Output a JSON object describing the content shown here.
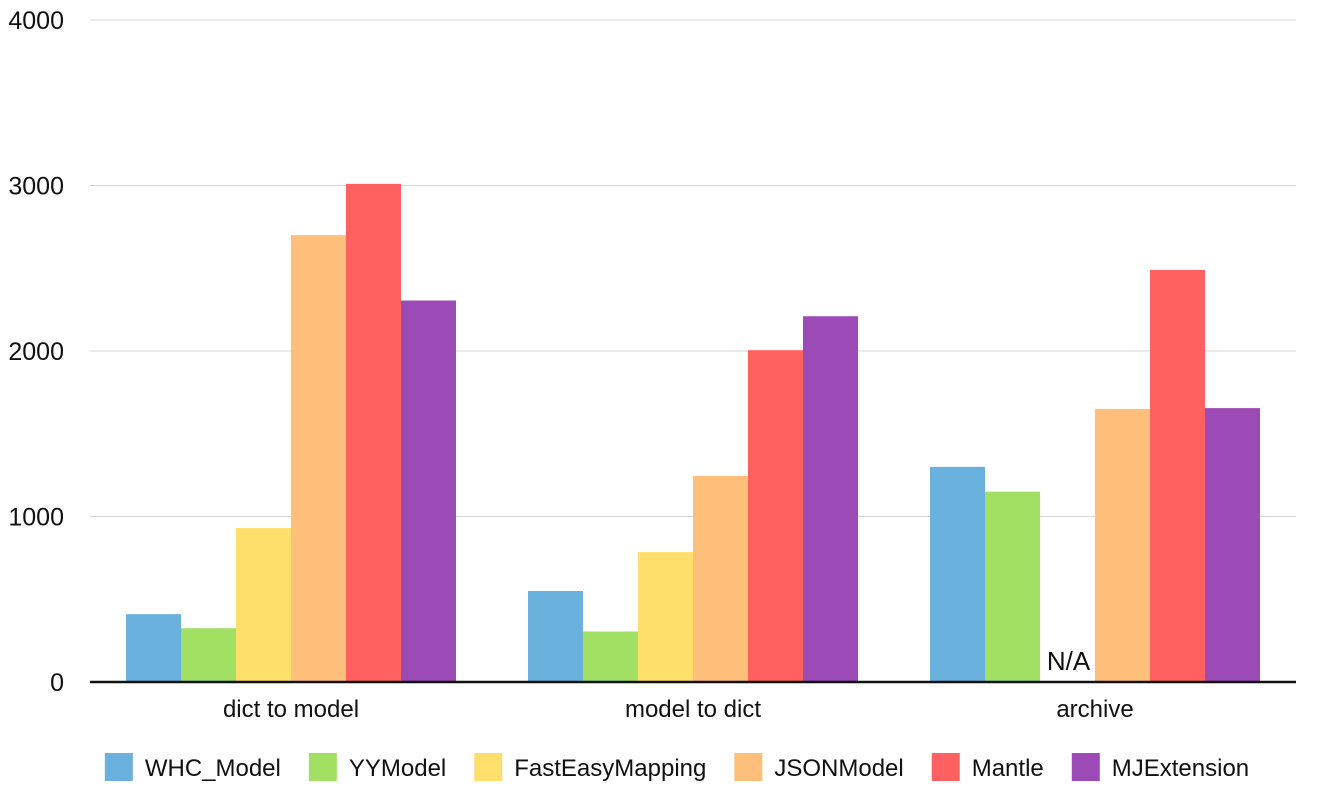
{
  "chart_data": {
    "type": "bar",
    "title": "",
    "xlabel": "",
    "ylabel": "",
    "ylim": [
      0,
      4000
    ],
    "yticks": [
      0,
      1000,
      2000,
      3000,
      4000
    ],
    "grid": true,
    "legend_position": "bottom",
    "categories": [
      "dict to model",
      "model to dict",
      "archive"
    ],
    "series": [
      {
        "name": "WHC_Model",
        "color": "#6ab2dd",
        "values": [
          410,
          550,
          1300
        ]
      },
      {
        "name": "YYModel",
        "color": "#a1e063",
        "values": [
          325,
          305,
          1150
        ]
      },
      {
        "name": "FastEasyMapping",
        "color": "#fedf6b",
        "values": [
          930,
          785,
          null
        ]
      },
      {
        "name": "JSONModel",
        "color": "#fdbf79",
        "values": [
          2700,
          1245,
          1650
        ]
      },
      {
        "name": "Mantle",
        "color": "#fe6160",
        "values": [
          3010,
          2005,
          2490
        ]
      },
      {
        "name": "MJExtension",
        "color": "#9c4ab6",
        "values": [
          2305,
          2210,
          1655
        ]
      }
    ],
    "annotations": [
      {
        "category": "archive",
        "series": "FastEasyMapping",
        "text": "N/A"
      }
    ]
  }
}
